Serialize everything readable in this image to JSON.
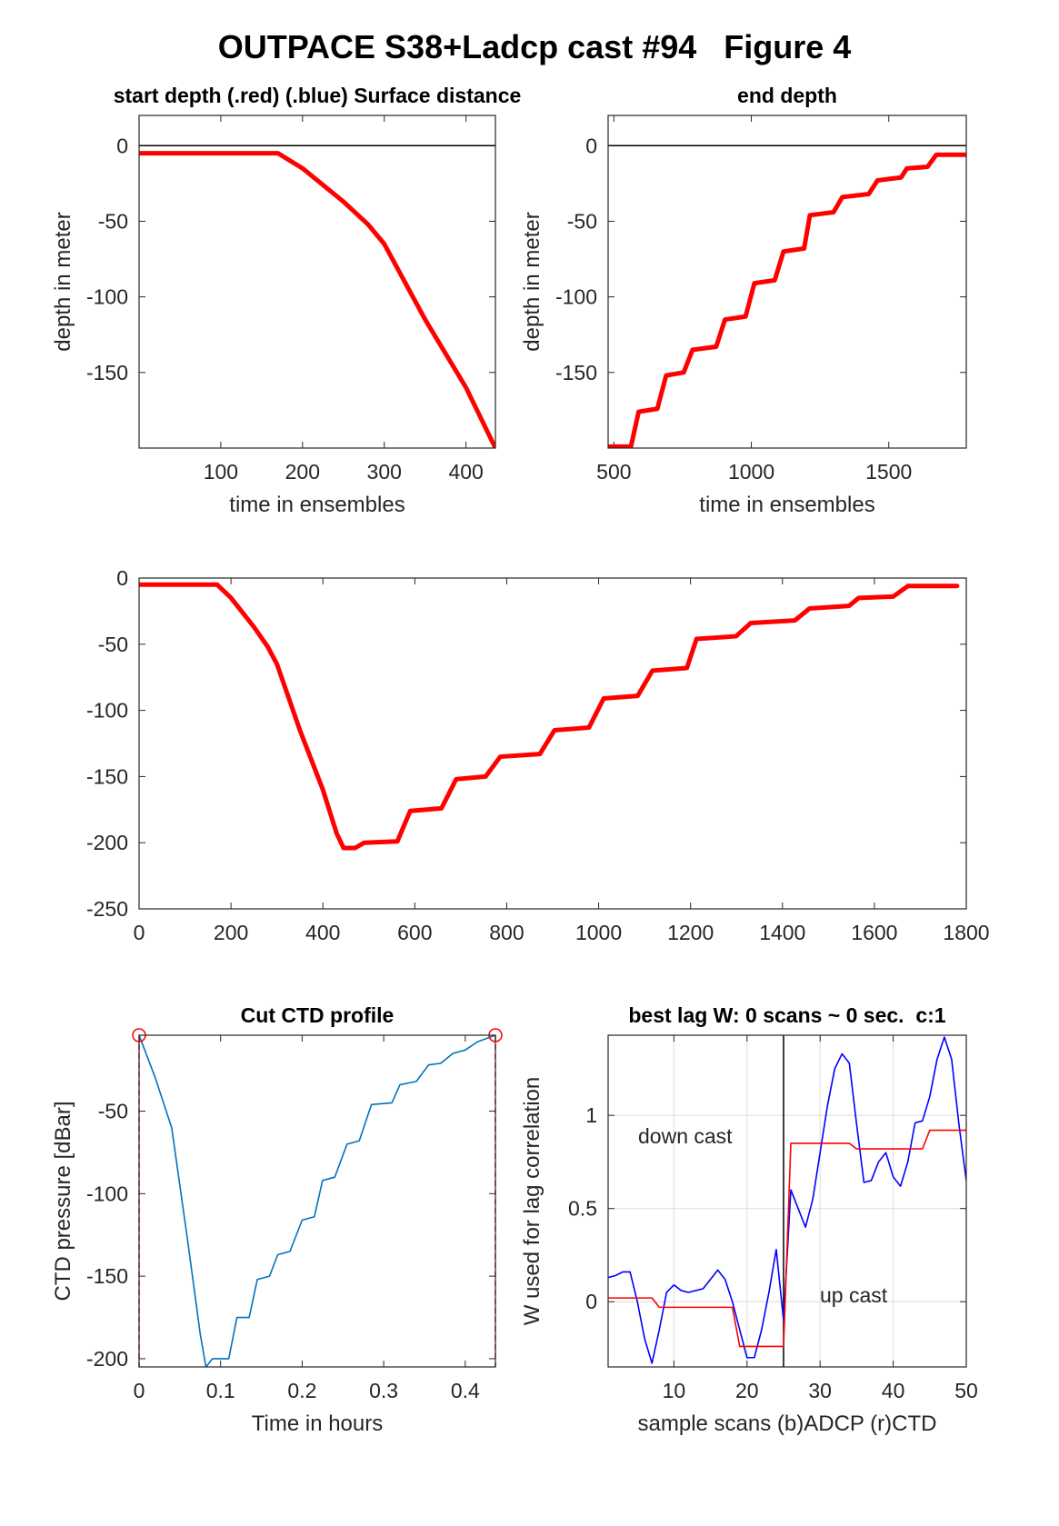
{
  "title": "OUTPACE S38+Ladcp cast #94   Figure 4",
  "chart_data": [
    {
      "type": "line",
      "title": "start depth (.red) (.blue) Surface distance",
      "x_label": "time in ensembles",
      "y_label": "depth in meter",
      "xlim": [
        0,
        436
      ],
      "ylim": [
        -200,
        20
      ],
      "xticks": [
        100,
        200,
        300,
        400
      ],
      "yticks": [
        -150,
        -100,
        -50,
        0
      ],
      "hline": 0,
      "series": [
        {
          "color": "#ff0000",
          "x": [
            0,
            170,
            200,
            250,
            280,
            300,
            350,
            400,
            436
          ],
          "values": [
            -5,
            -5,
            -15,
            -37,
            -52,
            -65,
            -115,
            -160,
            -200
          ]
        }
      ]
    },
    {
      "type": "line",
      "title": "end depth",
      "x_label": "time in ensembles",
      "y_label": "depth in meter",
      "xlim": [
        479,
        1782
      ],
      "ylim": [
        -200,
        20
      ],
      "xticks": [
        500,
        1000,
        1500
      ],
      "yticks": [
        -150,
        -100,
        -50,
        0
      ],
      "hline": 0,
      "series": [
        {
          "color": "#ff0000",
          "x": [
            479,
            562,
            590,
            658,
            690,
            754,
            786,
            872,
            904,
            979,
            1011,
            1085,
            1117,
            1192,
            1213,
            1299,
            1331,
            1427,
            1459,
            1545,
            1566,
            1641,
            1673,
            1782
          ],
          "values": [
            -199,
            -199,
            -176,
            -174,
            -152,
            -150,
            -135,
            -133,
            -115,
            -113,
            -91,
            -89,
            -70,
            -68,
            -46,
            -44,
            -34,
            -32,
            -23,
            -21,
            -15,
            -14,
            -6,
            -6
          ]
        }
      ]
    },
    {
      "type": "line",
      "xlim": [
        0,
        1800
      ],
      "ylim": [
        -250,
        0
      ],
      "xticks": [
        0,
        200,
        400,
        600,
        800,
        1000,
        1200,
        1400,
        1600,
        1800
      ],
      "yticks": [
        -250,
        -200,
        -150,
        -100,
        -50,
        0
      ],
      "series": [
        {
          "color": "#ff0000",
          "x": [
            0,
            170,
            200,
            250,
            280,
            300,
            350,
            400,
            430,
            445,
            470,
            490,
            562,
            590,
            658,
            690,
            754,
            786,
            872,
            904,
            979,
            1011,
            1085,
            1117,
            1192,
            1213,
            1299,
            1331,
            1427,
            1459,
            1545,
            1566,
            1641,
            1673,
            1780
          ],
          "values": [
            -5,
            -5,
            -15,
            -37,
            -52,
            -65,
            -115,
            -160,
            -193,
            -204,
            -204,
            -200,
            -199,
            -176,
            -174,
            -152,
            -150,
            -135,
            -133,
            -115,
            -113,
            -91,
            -89,
            -70,
            -68,
            -46,
            -44,
            -34,
            -32,
            -23,
            -21,
            -15,
            -14,
            -6,
            -6
          ]
        }
      ]
    },
    {
      "type": "line",
      "title": "Cut CTD profile",
      "x_label": "Time in hours",
      "y_label": "CTD pressure [dBar]",
      "xlim": [
        0,
        0.437
      ],
      "ylim": [
        -205,
        -4
      ],
      "xticks": [
        0,
        0.1,
        0.2,
        0.3,
        0.4
      ],
      "yticks": [
        -200,
        -150,
        -100,
        -50
      ],
      "series": [
        {
          "color": "#0072bd",
          "x": [
            0,
            0.02,
            0.04,
            0.06,
            0.075,
            0.082,
            0.09,
            0.11,
            0.12,
            0.135,
            0.145,
            0.16,
            0.17,
            0.185,
            0.2,
            0.215,
            0.225,
            0.24,
            0.255,
            0.27,
            0.285,
            0.31,
            0.32,
            0.34,
            0.355,
            0.37,
            0.385,
            0.4,
            0.415,
            0.437
          ],
          "values": [
            -4,
            -30,
            -60,
            -130,
            -185,
            -205,
            -200,
            -200,
            -175,
            -175,
            -152,
            -150,
            -137,
            -135,
            -116,
            -114,
            -92,
            -90,
            -70,
            -68,
            -46,
            -45,
            -34,
            -32,
            -22,
            -21,
            -15,
            -13,
            -8,
            -4
          ]
        }
      ],
      "markers": {
        "color": "#ff0000",
        "x": [
          0,
          0.437
        ],
        "values": [
          -4,
          -4
        ]
      }
    },
    {
      "type": "line",
      "title": "best lag W: 0 scans ~ 0 sec.  c:1",
      "x_label": "sample scans (b)ADCP (r)CTD",
      "y_label": "W used for lag correlation",
      "xlim": [
        1,
        50
      ],
      "ylim": [
        -0.35,
        1.43
      ],
      "xticks": [
        10,
        20,
        30,
        40,
        50
      ],
      "yticks": [
        0,
        0.5,
        1
      ],
      "grid": true,
      "vline": 25,
      "annotations": [
        "down cast",
        "up cast"
      ],
      "series": [
        {
          "color": "#0000ff",
          "x": [
            1,
            2,
            3,
            4,
            5,
            6,
            7,
            8,
            9,
            10,
            11,
            12,
            13,
            14,
            15,
            16,
            17,
            18,
            19,
            20,
            21,
            22,
            23,
            24,
            25,
            26,
            27,
            28,
            29,
            30,
            31,
            32,
            33,
            34,
            35,
            36,
            37,
            38,
            39,
            40,
            41,
            42,
            43,
            44,
            45,
            46,
            47,
            48,
            49,
            50
          ],
          "values": [
            0.13,
            0.14,
            0.16,
            0.16,
            0.0,
            -0.2,
            -0.33,
            -0.15,
            0.05,
            0.09,
            0.06,
            0.05,
            0.06,
            0.07,
            0.12,
            0.17,
            0.12,
            0.0,
            -0.15,
            -0.3,
            -0.3,
            -0.15,
            0.05,
            0.28,
            -0.1,
            0.6,
            0.5,
            0.4,
            0.55,
            0.8,
            1.05,
            1.25,
            1.33,
            1.28,
            0.95,
            0.64,
            0.65,
            0.75,
            0.8,
            0.67,
            0.62,
            0.75,
            0.96,
            0.97,
            1.1,
            1.3,
            1.42,
            1.3,
            0.95,
            0.65
          ]
        },
        {
          "color": "#ff0000",
          "x": [
            1,
            2,
            3,
            4,
            5,
            6,
            7,
            8,
            9,
            10,
            11,
            12,
            13,
            14,
            15,
            16,
            17,
            18,
            19,
            20,
            21,
            22,
            23,
            24,
            25,
            26,
            27,
            28,
            29,
            30,
            31,
            32,
            33,
            34,
            35,
            36,
            37,
            38,
            39,
            40,
            41,
            42,
            43,
            44,
            45,
            46,
            47,
            48,
            49,
            50
          ],
          "values": [
            0.02,
            0.02,
            0.02,
            0.02,
            0.02,
            0.02,
            0.02,
            -0.03,
            -0.03,
            -0.03,
            -0.03,
            -0.03,
            -0.03,
            -0.03,
            -0.03,
            -0.03,
            -0.03,
            -0.03,
            -0.24,
            -0.24,
            -0.24,
            -0.24,
            -0.24,
            -0.24,
            -0.24,
            0.85,
            0.85,
            0.85,
            0.85,
            0.85,
            0.85,
            0.85,
            0.85,
            0.85,
            0.82,
            0.82,
            0.82,
            0.82,
            0.82,
            0.82,
            0.82,
            0.82,
            0.82,
            0.82,
            0.92,
            0.92,
            0.92,
            0.92,
            0.92,
            0.92
          ]
        }
      ]
    }
  ]
}
